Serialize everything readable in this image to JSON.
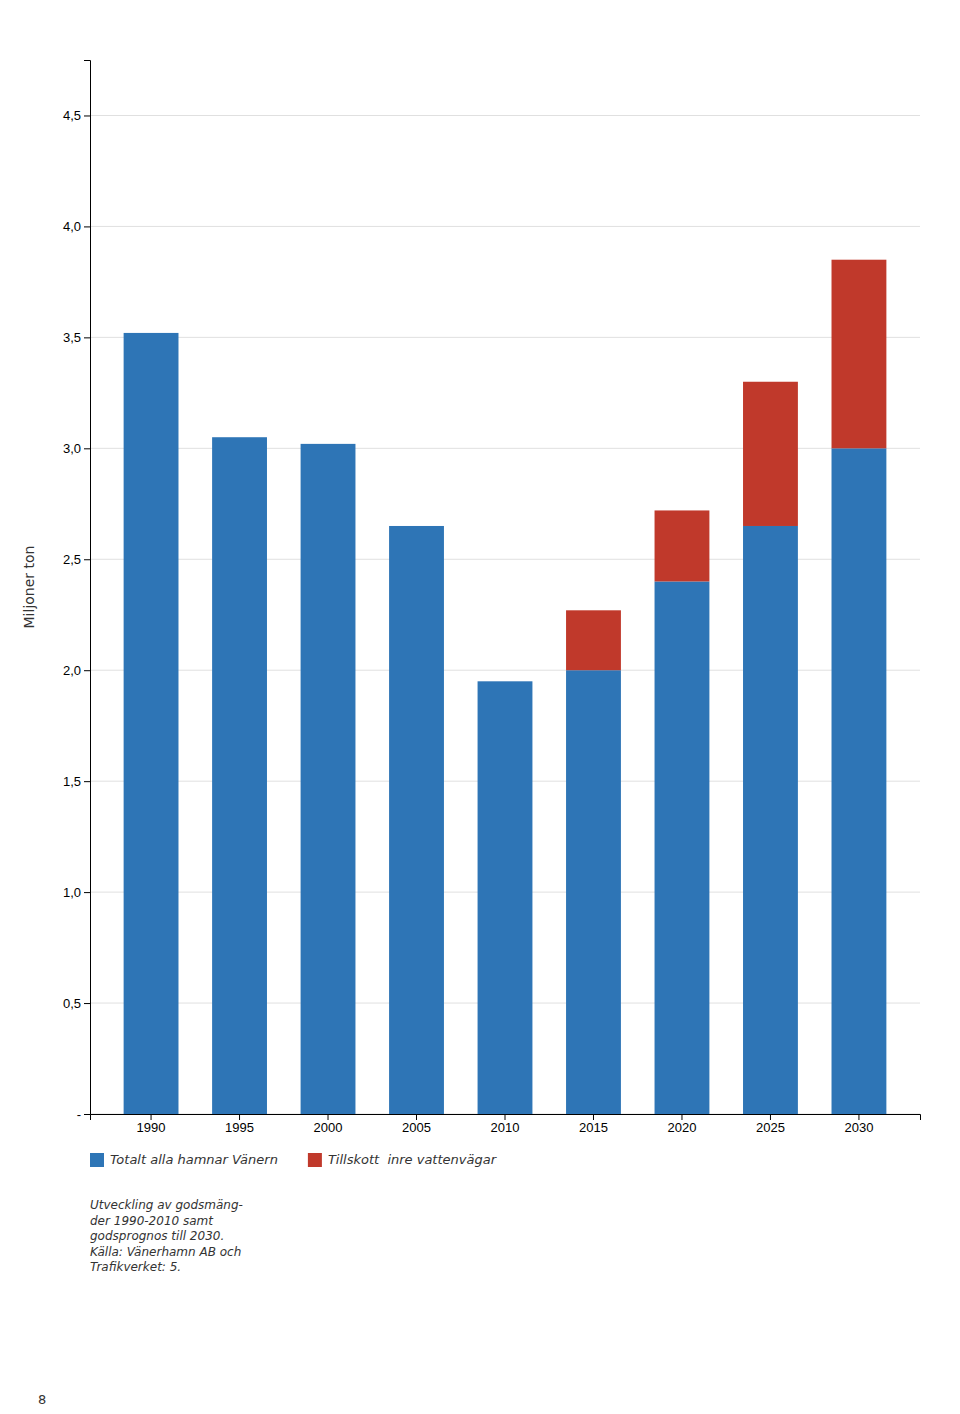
{
  "chart_data": {
    "type": "bar",
    "stacked": true,
    "y_label": "Miljoner ton",
    "categories": [
      "1990",
      "1995",
      "2000",
      "2005",
      "2010",
      "2015",
      "2020",
      "2025",
      "2030"
    ],
    "series": [
      {
        "name": "Totalt alla hamnar Vänern",
        "color": "#2e75b6",
        "values": [
          3.52,
          3.05,
          3.02,
          2.65,
          1.95,
          2.0,
          2.4,
          2.65,
          3.0
        ]
      },
      {
        "name": "Tillskott  inre vattenvägar",
        "color": "#c0392b",
        "values": [
          0.0,
          0.0,
          0.0,
          0.0,
          0.0,
          0.27,
          0.32,
          0.65,
          0.85
        ]
      }
    ],
    "ylim": [
      0,
      4.75
    ],
    "yticks": [
      {
        "value": 0.0,
        "label": "-"
      },
      {
        "value": 0.5,
        "label": "0,5"
      },
      {
        "value": 1.0,
        "label": "1,0"
      },
      {
        "value": 1.5,
        "label": "1,5"
      },
      {
        "value": 2.0,
        "label": "2,0"
      },
      {
        "value": 2.5,
        "label": "2,5"
      },
      {
        "value": 3.0,
        "label": "3,0"
      },
      {
        "value": 3.5,
        "label": "3,5"
      },
      {
        "value": 4.0,
        "label": "4,0"
      },
      {
        "value": 4.5,
        "label": "4,5"
      }
    ],
    "grid": true,
    "legend": "bottom",
    "annotations": [
      "Utveckling av godsmäng-\nder 1990-2010 samt\ngodsprognos till 2030.\nKälla: Vänerhamn AB och\nTrafikverket: 5.",
      "8"
    ]
  }
}
